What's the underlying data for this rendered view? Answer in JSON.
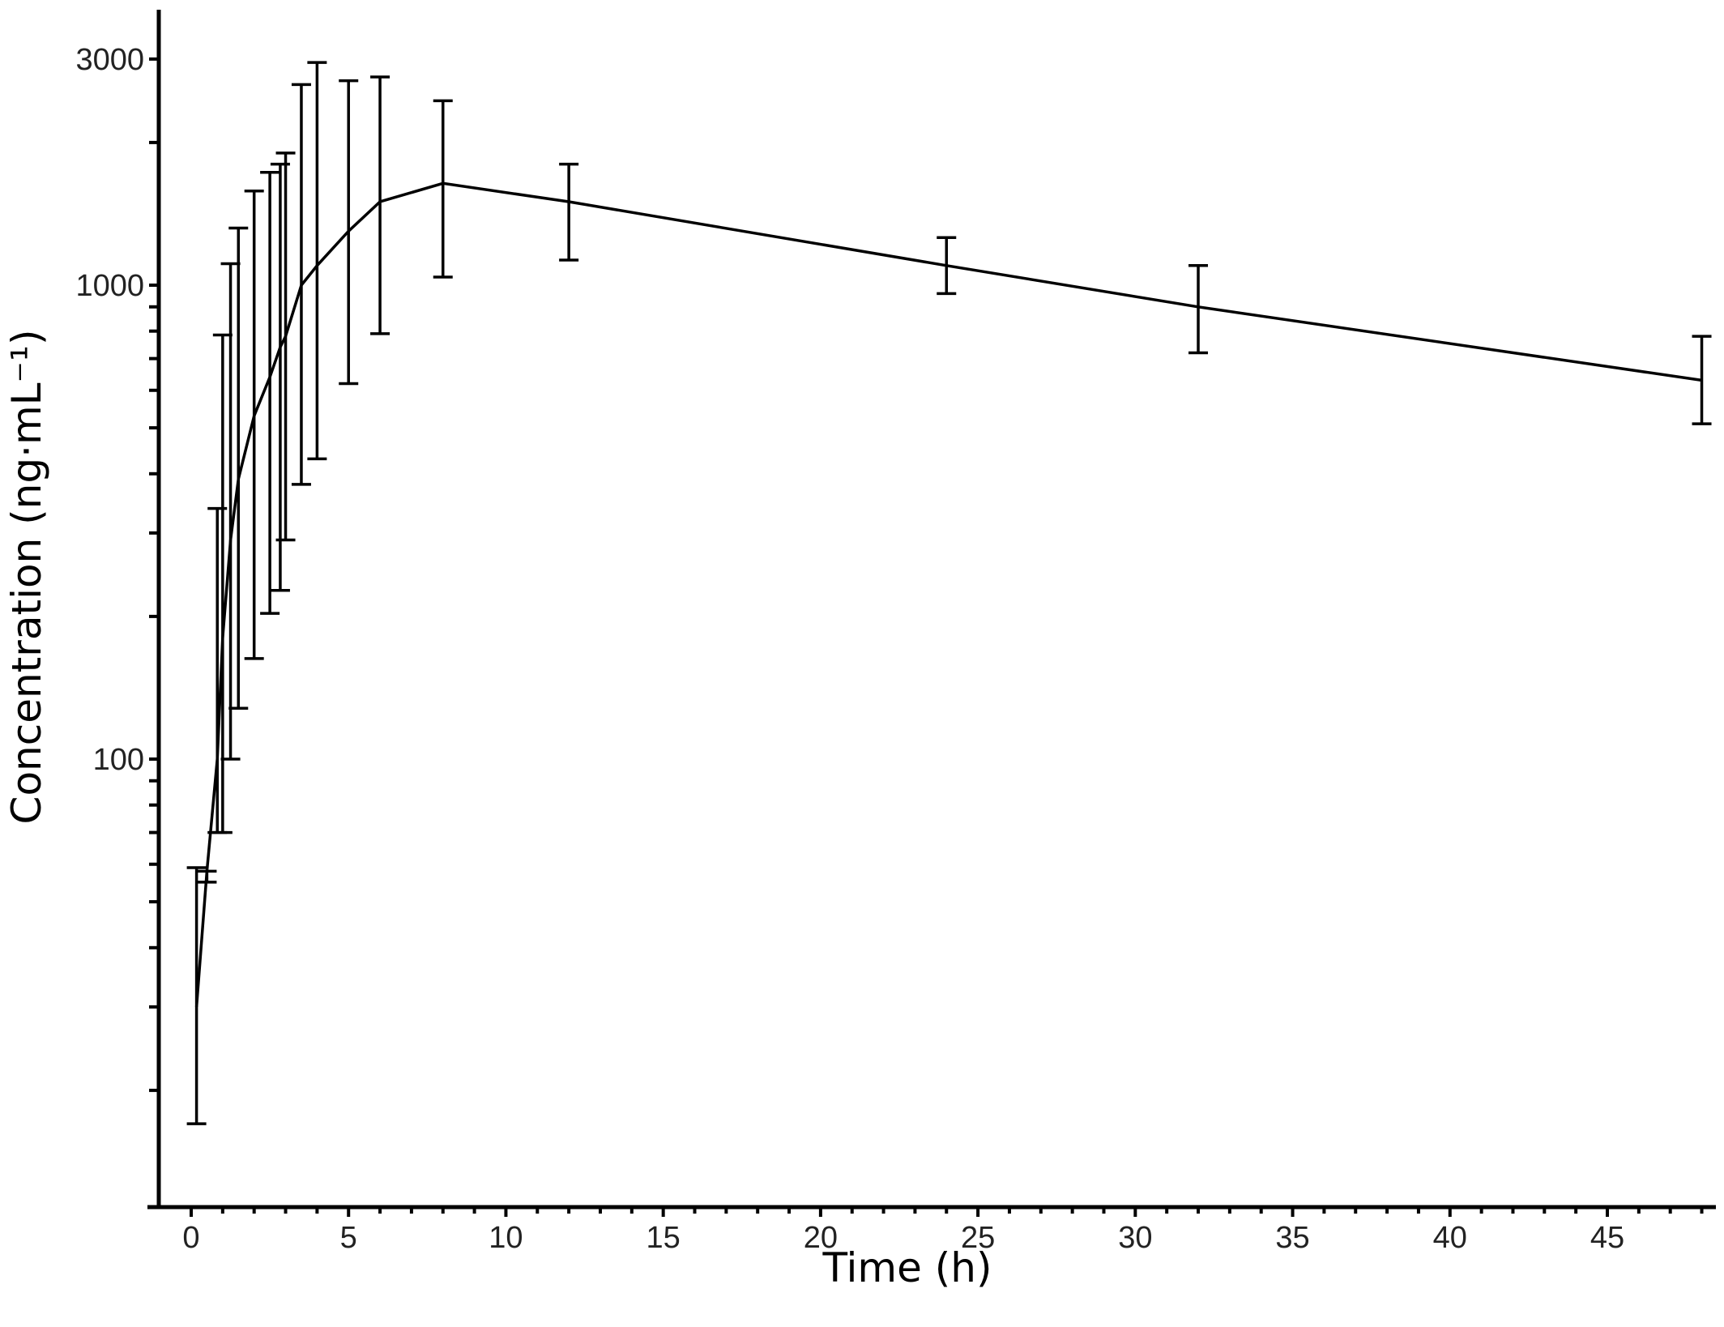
{
  "chart_data": {
    "type": "line",
    "title": "",
    "xlabel": "Time (h)",
    "ylabel": "Concentration (ng·mL⁻¹)",
    "x_scale": "linear",
    "y_scale": "log",
    "xlim": [
      -1,
      48.5
    ],
    "ylim": [
      10,
      3500
    ],
    "x_ticks": [
      0,
      5,
      10,
      15,
      20,
      25,
      30,
      35,
      40,
      45
    ],
    "x_tick_labels": [
      "0",
      "5",
      "10",
      "15",
      "20",
      "25",
      "30",
      "35",
      "40",
      "45"
    ],
    "y_tick_labels": [
      {
        "value": 100,
        "label": "100"
      },
      {
        "value": 1000,
        "label": "1000"
      },
      {
        "value": 3000,
        "label": "3000"
      }
    ],
    "grid": false,
    "series": [
      {
        "color": "#000000",
        "points": [
          {
            "x": 0.17,
            "y": 30,
            "lower": 17,
            "upper": 59
          },
          {
            "x": 0.5,
            "y": 58,
            "lower": 55,
            "upper": 58
          },
          {
            "x": 0.83,
            "y": 100,
            "lower": 70,
            "upper": 338
          },
          {
            "x": 1.0,
            "y": 180,
            "lower": 70,
            "upper": 785
          },
          {
            "x": 1.25,
            "y": 290,
            "lower": 100,
            "upper": 1110
          },
          {
            "x": 1.5,
            "y": 390,
            "lower": 128,
            "upper": 1320
          },
          {
            "x": 2.0,
            "y": 530,
            "lower": 163,
            "upper": 1580
          },
          {
            "x": 2.5,
            "y": 640,
            "lower": 203,
            "upper": 1730
          },
          {
            "x": 2.83,
            "y": 740,
            "lower": 227,
            "upper": 1800
          },
          {
            "x": 3.0,
            "y": 780,
            "lower": 290,
            "upper": 1900
          },
          {
            "x": 3.5,
            "y": 1000,
            "lower": 380,
            "upper": 2650
          },
          {
            "x": 4.0,
            "y": 1100,
            "lower": 430,
            "upper": 2950
          },
          {
            "x": 5.0,
            "y": 1300,
            "lower": 620,
            "upper": 2700
          },
          {
            "x": 6.0,
            "y": 1500,
            "lower": 790,
            "upper": 2750
          },
          {
            "x": 8.0,
            "y": 1640,
            "lower": 1040,
            "upper": 2450
          },
          {
            "x": 12.0,
            "y": 1500,
            "lower": 1130,
            "upper": 1800
          },
          {
            "x": 24.0,
            "y": 1100,
            "lower": 960,
            "upper": 1260
          },
          {
            "x": 32.0,
            "y": 900,
            "lower": 720,
            "upper": 1100
          },
          {
            "x": 48.0,
            "y": 630,
            "lower": 510,
            "upper": 780
          }
        ]
      }
    ]
  }
}
